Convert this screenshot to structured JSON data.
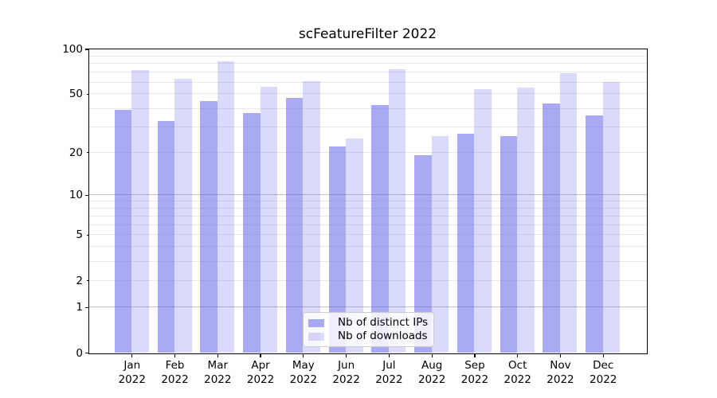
{
  "title": "scFeatureFilter 2022",
  "chart_data": {
    "type": "bar",
    "title": "scFeatureFilter 2022",
    "categories": [
      "Jan",
      "Feb",
      "Mar",
      "Apr",
      "May",
      "Jun",
      "Jul",
      "Aug",
      "Sep",
      "Oct",
      "Nov",
      "Dec"
    ],
    "year": "2022",
    "series": [
      {
        "name": "Nb of distinct IPs",
        "color": "rgba(85,85,230,0.5)",
        "values": [
          39,
          33,
          45,
          37,
          47,
          22,
          42,
          19,
          27,
          26,
          43,
          36
        ]
      },
      {
        "name": "Nb of downloads",
        "color": "rgba(85,85,230,0.22)",
        "values": [
          72,
          63,
          83,
          56,
          61,
          25,
          73,
          26,
          54,
          55,
          69,
          60
        ]
      }
    ],
    "xlabel": "",
    "ylabel": "",
    "ylim": [
      0,
      100
    ],
    "yscale": "log1p",
    "legend_position": "lower center",
    "grid": {
      "major": [
        1,
        10
      ],
      "minor": [
        2,
        3,
        4,
        5,
        6,
        7,
        8,
        9,
        20,
        30,
        40,
        50,
        60,
        70,
        80,
        90
      ],
      "major_color": "#c2c2c2",
      "minor_color": "#e8e8e8"
    },
    "y_ticks": [
      {
        "value": 0,
        "label": "0",
        "major": true
      },
      {
        "value": 1,
        "label": "1",
        "major": true
      },
      {
        "value": 2,
        "label": "2",
        "major": false
      },
      {
        "value": 5,
        "label": "5",
        "major": false
      },
      {
        "value": 10,
        "label": "10",
        "major": true
      },
      {
        "value": 20,
        "label": "20",
        "major": false
      },
      {
        "value": 50,
        "label": "50",
        "major": false
      },
      {
        "value": 100,
        "label": "100",
        "major": true
      }
    ]
  }
}
